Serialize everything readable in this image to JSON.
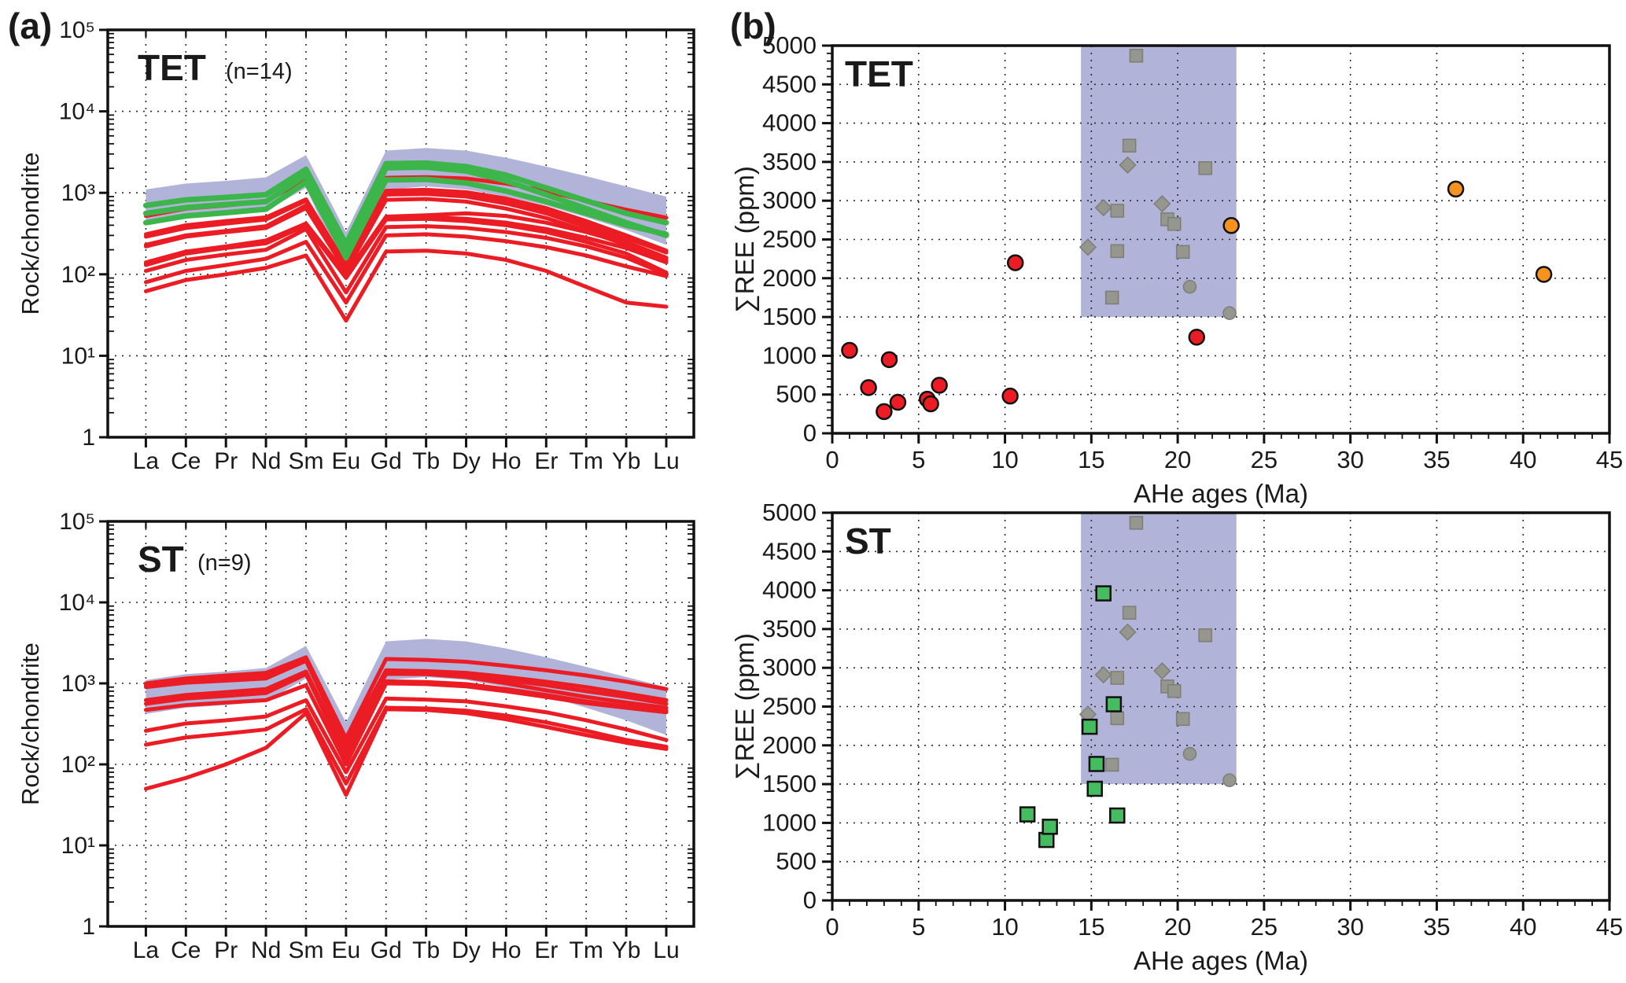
{
  "figure": {
    "panel_a_label": "(a)",
    "panel_b_label": "(b)"
  },
  "colors": {
    "envelope": "#b1b3d8",
    "shade_box": "#b1b3d8",
    "red_line": "#ec1c24",
    "green_line": "#3cb54a",
    "red_marker": "#e8392c",
    "orange_marker": "#f6921e",
    "green_marker": "#45bc5f",
    "gray_marker": "#95978f",
    "gray_marker_edge": "#7e8078",
    "axis": "#111111",
    "grid": "#2a2a2a",
    "text": "#1a1a1a"
  },
  "chart_data": [
    {
      "id": "tet_spider",
      "type": "line",
      "title": "TET",
      "subtitle": "(n=14)",
      "ylabel": "Rock/chondrite",
      "yscale": "log",
      "ylim": [
        1,
        100000
      ],
      "ytick_values": [
        100000,
        10000,
        1000,
        100,
        10,
        1
      ],
      "ytick_labels": [
        "10⁵",
        "10⁴",
        "10³",
        "10²",
        "10¹",
        "1"
      ],
      "categories": [
        "La",
        "Ce",
        "Pr",
        "Nd",
        "Sm",
        "Eu",
        "Gd",
        "Tb",
        "Dy",
        "Ho",
        "Er",
        "Tm",
        "Yb",
        "Lu"
      ],
      "envelope": {
        "upper": [
          1100,
          1300,
          1400,
          1550,
          2900,
          330,
          3300,
          3550,
          3300,
          2700,
          2100,
          1600,
          1200,
          900
        ],
        "lower": [
          420,
          500,
          540,
          600,
          1150,
          100,
          1100,
          1200,
          1100,
          900,
          700,
          500,
          350,
          230
        ]
      },
      "series": [
        {
          "name": "green-1",
          "color": "green",
          "values": [
            700,
            820,
            880,
            950,
            1950,
            235,
            2280,
            2320,
            2100,
            1650,
            1150,
            800,
            560,
            430
          ]
        },
        {
          "name": "green-2",
          "color": "green",
          "values": [
            560,
            660,
            720,
            780,
            1650,
            200,
            2030,
            2060,
            1850,
            1400,
            950,
            640,
            430,
            300
          ]
        },
        {
          "name": "green-3",
          "color": "green",
          "values": [
            430,
            520,
            570,
            630,
            1350,
            160,
            1440,
            1460,
            1320,
            1050,
            780,
            560,
            400,
            310
          ]
        },
        {
          "name": "red-1",
          "color": "red",
          "values": [
            520,
            640,
            700,
            780,
            1500,
            230,
            1530,
            1560,
            1500,
            1300,
            1050,
            800,
            620,
            495
          ]
        },
        {
          "name": "red-2",
          "color": "red",
          "values": [
            310,
            400,
            450,
            500,
            830,
            130,
            1060,
            1090,
            1020,
            850,
            650,
            450,
            300,
            195
          ]
        },
        {
          "name": "red-3",
          "color": "red",
          "values": [
            290,
            370,
            420,
            470,
            800,
            125,
            1010,
            1030,
            960,
            800,
            610,
            420,
            280,
            185
          ]
        },
        {
          "name": "red-4",
          "color": "red",
          "values": [
            230,
            300,
            340,
            390,
            700,
            115,
            950,
            970,
            900,
            740,
            560,
            380,
            250,
            160
          ]
        },
        {
          "name": "red-5",
          "color": "red",
          "values": [
            220,
            290,
            330,
            370,
            650,
            110,
            820,
            840,
            780,
            640,
            490,
            340,
            230,
            150
          ]
        },
        {
          "name": "red-6",
          "color": "red",
          "values": [
            140,
            190,
            220,
            260,
            420,
            100,
            510,
            530,
            560,
            520,
            430,
            330,
            240,
            150
          ]
        },
        {
          "name": "red-7",
          "color": "red",
          "values": [
            135,
            185,
            215,
            250,
            410,
            95,
            490,
            500,
            480,
            430,
            360,
            280,
            210,
            140
          ]
        },
        {
          "name": "red-8",
          "color": "red",
          "values": [
            130,
            180,
            210,
            240,
            400,
            90,
            470,
            480,
            450,
            400,
            330,
            250,
            180,
            105
          ]
        },
        {
          "name": "red-9",
          "color": "red",
          "values": [
            110,
            150,
            175,
            200,
            360,
            60,
            380,
            390,
            370,
            330,
            280,
            220,
            160,
            100
          ]
        },
        {
          "name": "red-10",
          "color": "red",
          "values": [
            80,
            110,
            130,
            155,
            250,
            45,
            300,
            310,
            290,
            255,
            215,
            170,
            125,
            95
          ]
        },
        {
          "name": "red-11",
          "color": "red",
          "values": [
            62,
            85,
            100,
            120,
            170,
            27,
            190,
            195,
            180,
            150,
            110,
            70,
            45,
            40
          ]
        }
      ]
    },
    {
      "id": "st_spider",
      "type": "line",
      "title": "ST",
      "subtitle": "(n=9)",
      "ylabel": "Rock/chondrite",
      "yscale": "log",
      "ylim": [
        1,
        100000
      ],
      "ytick_values": [
        100000,
        10000,
        1000,
        100,
        10,
        1
      ],
      "ytick_labels": [
        "10⁵",
        "10⁴",
        "10³",
        "10²",
        "10¹",
        "1"
      ],
      "categories": [
        "La",
        "Ce",
        "Pr",
        "Nd",
        "Sm",
        "Eu",
        "Gd",
        "Tb",
        "Dy",
        "Ho",
        "Er",
        "Tm",
        "Yb",
        "Lu"
      ],
      "envelope": {
        "upper": [
          1100,
          1300,
          1400,
          1550,
          2900,
          330,
          3300,
          3550,
          3300,
          2700,
          2100,
          1600,
          1200,
          900
        ],
        "lower": [
          420,
          500,
          540,
          600,
          1150,
          100,
          1100,
          1200,
          1100,
          900,
          700,
          500,
          350,
          230
        ]
      },
      "series": [
        {
          "name": "red-1",
          "color": "red",
          "values": [
            1000,
            1150,
            1250,
            1350,
            2100,
            210,
            2000,
            1950,
            1850,
            1650,
            1450,
            1250,
            1050,
            850
          ]
        },
        {
          "name": "red-2",
          "color": "red",
          "values": [
            950,
            1080,
            1150,
            1250,
            2000,
            185,
            1450,
            1420,
            1350,
            1200,
            1050,
            900,
            750,
            620
          ]
        },
        {
          "name": "red-3",
          "color": "red",
          "values": [
            900,
            1020,
            1080,
            1150,
            1900,
            170,
            1380,
            1350,
            1280,
            1100,
            950,
            800,
            680,
            560
          ]
        },
        {
          "name": "red-4",
          "color": "red",
          "values": [
            620,
            720,
            780,
            850,
            1400,
            140,
            1310,
            1300,
            1200,
            1000,
            820,
            680,
            580,
            500
          ]
        },
        {
          "name": "red-5",
          "color": "red",
          "values": [
            560,
            650,
            700,
            760,
            1300,
            120,
            1060,
            1040,
            980,
            850,
            720,
            600,
            520,
            460
          ]
        },
        {
          "name": "red-6",
          "color": "red",
          "values": [
            470,
            540,
            580,
            620,
            950,
            100,
            1000,
            980,
            920,
            800,
            680,
            570,
            500,
            440
          ]
        },
        {
          "name": "red-7",
          "color": "red",
          "values": [
            260,
            320,
            350,
            390,
            620,
            80,
            650,
            630,
            600,
            520,
            440,
            350,
            270,
            200
          ]
        },
        {
          "name": "red-8",
          "color": "red",
          "values": [
            175,
            215,
            240,
            270,
            480,
            58,
            500,
            490,
            460,
            400,
            330,
            260,
            200,
            165
          ]
        },
        {
          "name": "red-9",
          "color": "red",
          "values": [
            50,
            68,
            100,
            160,
            430,
            42,
            480,
            470,
            430,
            360,
            290,
            230,
            185,
            155
          ]
        }
      ]
    },
    {
      "id": "tet_scatter",
      "type": "scatter",
      "title": "TET",
      "xlabel": "AHe ages (Ma)",
      "ylabel": "∑REE (ppm)",
      "xlim": [
        0,
        45
      ],
      "ylim": [
        0,
        5000
      ],
      "xtick_step": 5,
      "xminor_step": 1,
      "ytick_step": 500,
      "yminor_step": 100,
      "shaded_region": {
        "x": [
          14.4,
          23.4
        ],
        "y": [
          1500,
          5000
        ]
      },
      "series": [
        {
          "name": "gray-squares",
          "marker": "square",
          "color": "gray",
          "points": [
            [
              17.6,
              4870
            ],
            [
              17.2,
              3710
            ],
            [
              21.6,
              3420
            ],
            [
              16.5,
              2870
            ],
            [
              19.4,
              2760
            ],
            [
              19.8,
              2700
            ],
            [
              16.5,
              2350
            ],
            [
              20.3,
              2340
            ],
            [
              16.2,
              1750
            ]
          ]
        },
        {
          "name": "gray-diamonds",
          "marker": "diamond",
          "color": "gray",
          "points": [
            [
              17.1,
              3460
            ],
            [
              19.1,
              2960
            ],
            [
              15.7,
              2910
            ],
            [
              14.8,
              2400
            ]
          ]
        },
        {
          "name": "gray-circles",
          "marker": "circle",
          "color": "gray",
          "points": [
            [
              20.7,
              1890
            ],
            [
              23.0,
              1550
            ]
          ]
        },
        {
          "name": "red-circles",
          "marker": "circle",
          "color": "red",
          "points": [
            [
              1.0,
              1070
            ],
            [
              2.1,
              590
            ],
            [
              3.0,
              280
            ],
            [
              3.3,
              950
            ],
            [
              3.8,
              400
            ],
            [
              5.5,
              440
            ],
            [
              5.7,
              380
            ],
            [
              6.2,
              620
            ],
            [
              10.3,
              480
            ],
            [
              10.6,
              2200
            ],
            [
              21.1,
              1240
            ]
          ]
        },
        {
          "name": "orange-circles",
          "marker": "circle",
          "color": "orange",
          "points": [
            [
              23.1,
              2680
            ],
            [
              36.1,
              3150
            ],
            [
              41.2,
              2050
            ]
          ]
        }
      ]
    },
    {
      "id": "st_scatter",
      "type": "scatter",
      "title": "ST",
      "xlabel": "AHe ages (Ma)",
      "ylabel": "∑REE (ppm)",
      "xlim": [
        0,
        45
      ],
      "ylim": [
        0,
        5000
      ],
      "xtick_step": 5,
      "xminor_step": 1,
      "ytick_step": 500,
      "yminor_step": 100,
      "shaded_region": {
        "x": [
          14.4,
          23.4
        ],
        "y": [
          1500,
          5000
        ]
      },
      "series": [
        {
          "name": "gray-squares",
          "marker": "square",
          "color": "gray",
          "points": [
            [
              17.6,
              4870
            ],
            [
              17.2,
              3710
            ],
            [
              21.6,
              3420
            ],
            [
              16.5,
              2870
            ],
            [
              19.4,
              2760
            ],
            [
              19.8,
              2700
            ],
            [
              16.5,
              2350
            ],
            [
              20.3,
              2340
            ],
            [
              16.2,
              1750
            ]
          ]
        },
        {
          "name": "gray-diamonds",
          "marker": "diamond",
          "color": "gray",
          "points": [
            [
              17.1,
              3460
            ],
            [
              19.1,
              2960
            ],
            [
              15.7,
              2910
            ],
            [
              14.8,
              2400
            ]
          ]
        },
        {
          "name": "gray-circles",
          "marker": "circle",
          "color": "gray",
          "points": [
            [
              20.7,
              1890
            ],
            [
              23.0,
              1550
            ]
          ]
        },
        {
          "name": "green-squares",
          "marker": "square",
          "color": "greenm",
          "points": [
            [
              11.3,
              1110
            ],
            [
              12.4,
              780
            ],
            [
              12.6,
              950
            ],
            [
              14.9,
              2240
            ],
            [
              15.2,
              1440
            ],
            [
              15.3,
              1760
            ],
            [
              15.7,
              3960
            ],
            [
              16.3,
              2530
            ],
            [
              16.5,
              1095
            ]
          ]
        }
      ]
    }
  ]
}
